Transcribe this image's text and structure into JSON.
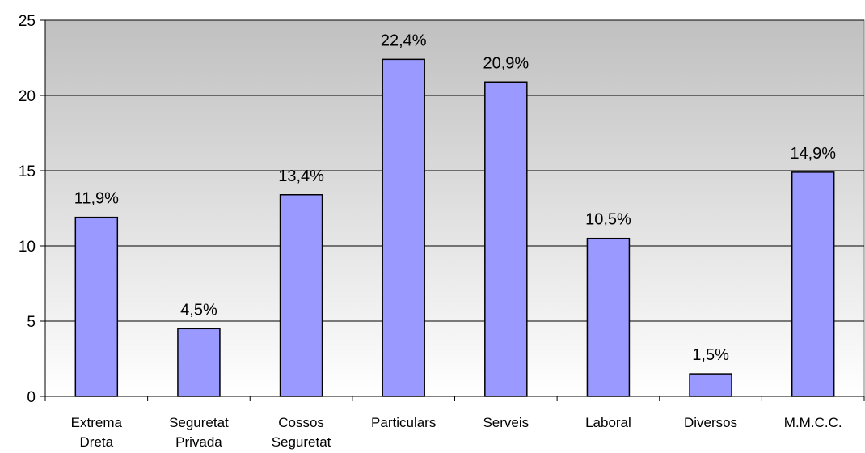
{
  "chart_data": {
    "type": "bar",
    "categories": [
      [
        "Extrema",
        "Dreta"
      ],
      [
        "Seguretat",
        "Privada"
      ],
      [
        "Cossos",
        "Seguretat"
      ],
      [
        "Particulars"
      ],
      [
        "Serveis"
      ],
      [
        "Laboral"
      ],
      [
        "Diversos"
      ],
      [
        "M.M.C.C."
      ]
    ],
    "values": [
      11.9,
      4.5,
      13.4,
      22.4,
      20.9,
      10.5,
      1.5,
      14.9
    ],
    "data_labels": [
      "11,9%",
      "4,5%",
      "13,4%",
      "22,4%",
      "20,9%",
      "10,5%",
      "1,5%",
      "14,9%"
    ],
    "y_ticks": [
      0,
      5,
      10,
      15,
      20,
      25
    ],
    "ylim": [
      0,
      25
    ],
    "title": "",
    "xlabel": "",
    "ylabel": "",
    "grid": true,
    "legend": "none",
    "colors": {
      "bar_fill": "#9999ff",
      "bar_stroke": "#000000",
      "plot_bg_top": "#c0c0c0",
      "plot_bg_bottom": "#ffffff",
      "gridline": "#000000"
    }
  }
}
